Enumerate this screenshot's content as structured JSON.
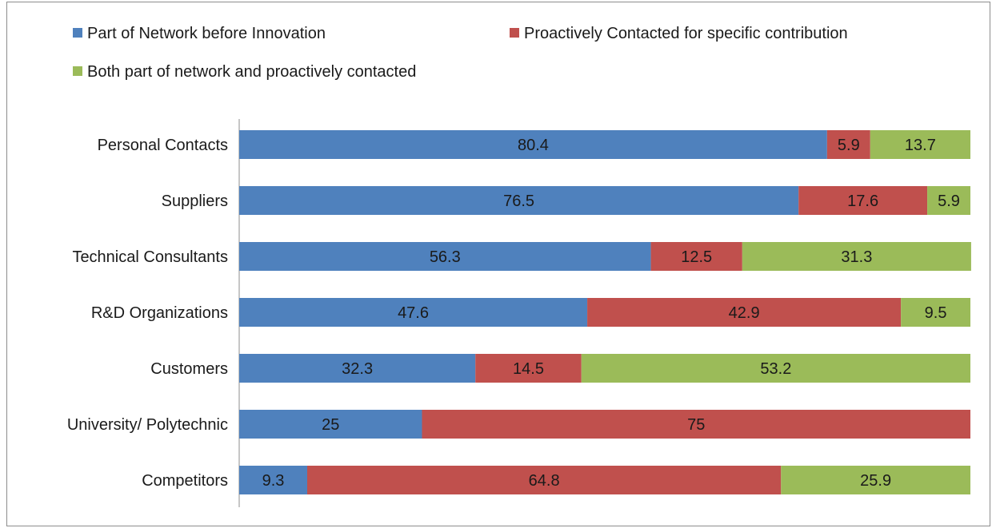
{
  "chart_data": {
    "type": "bar",
    "orientation": "horizontal",
    "stacked": "percent",
    "categories": [
      "Personal Contacts",
      "Suppliers",
      "Technical Consultants",
      "R&D Organizations",
      "Customers",
      "University/ Polytechnic",
      "Competitors"
    ],
    "series": [
      {
        "name": "Part of Network before Innovation",
        "color": "#4f81bd",
        "values": [
          80.4,
          76.5,
          56.3,
          47.6,
          32.3,
          25,
          9.3
        ]
      },
      {
        "name": "Proactively Contacted for specific contribution",
        "color": "#c0504d",
        "values": [
          5.9,
          17.6,
          12.5,
          42.9,
          14.5,
          75,
          64.8
        ]
      },
      {
        "name": "Both part of network and proactively contacted",
        "color": "#9bbb59",
        "values": [
          13.7,
          5.9,
          31.3,
          9.5,
          53.2,
          null,
          25.9
        ]
      }
    ],
    "data_labels": true,
    "xlim": [
      0,
      100
    ],
    "grid": false,
    "legend_position": "top",
    "title": "",
    "xlabel": "",
    "ylabel": ""
  }
}
